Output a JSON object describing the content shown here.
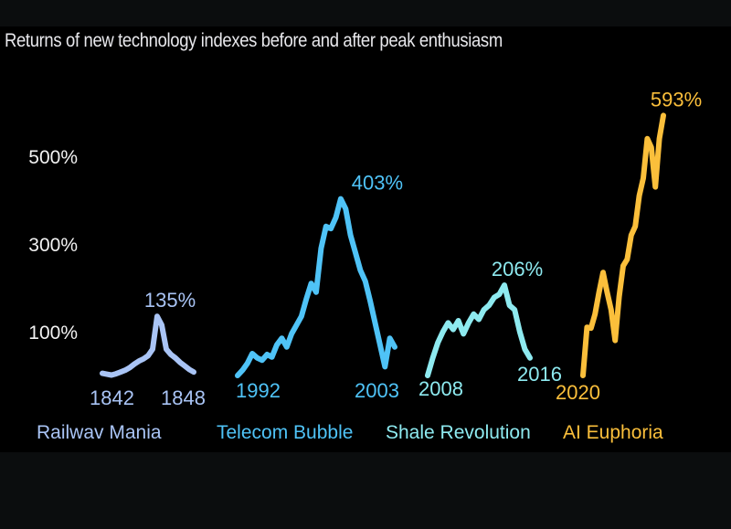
{
  "chart_data": {
    "type": "line",
    "title": "Returns of new technology indexes before and after peak enthusiasm",
    "xlabel": "",
    "ylabel": "",
    "ylim": [
      0,
      600
    ],
    "yticks": [
      100,
      300,
      500
    ],
    "ytick_labels": [
      "100%",
      "300%",
      "500%"
    ],
    "grid": false,
    "legend": "bottom",
    "series": [
      {
        "name": "Railwav Mania",
        "color": "#a9c4f5",
        "start_label": "1842",
        "end_label": "1848",
        "peak_label": "135%",
        "peak": 135,
        "values": [
          5,
          3,
          1,
          4,
          8,
          12,
          18,
          26,
          33,
          38,
          45,
          60,
          135,
          115,
          60,
          48,
          40,
          30,
          22,
          14,
          8
        ]
      },
      {
        "name": "Telecom Bubble",
        "color": "#4fc3f7",
        "start_label": "1992",
        "end_label": "2003",
        "peak_label": "403%",
        "peak": 403,
        "values": [
          0,
          12,
          28,
          50,
          40,
          35,
          48,
          42,
          70,
          85,
          65,
          95,
          115,
          135,
          175,
          210,
          190,
          290,
          340,
          335,
          360,
          403,
          380,
          320,
          280,
          240,
          215,
          170,
          120,
          70,
          20,
          85,
          65
        ]
      },
      {
        "name": "Shale Revolution",
        "color": "#8eeaf0",
        "start_label": "2008",
        "end_label": "2016",
        "peak_label": "206%",
        "peak": 206,
        "values": [
          0,
          40,
          75,
          100,
          120,
          105,
          125,
          95,
          120,
          140,
          128,
          150,
          160,
          178,
          185,
          206,
          160,
          150,
          100,
          60,
          40
        ]
      },
      {
        "name": "AI Euphoria",
        "color": "#fbbf3b",
        "start_label": "2020",
        "end_label": "",
        "peak_label": "593%",
        "peak": 593,
        "values": [
          0,
          110,
          108,
          140,
          190,
          235,
          190,
          150,
          80,
          180,
          250,
          265,
          320,
          340,
          410,
          450,
          540,
          520,
          430,
          540,
          593
        ]
      }
    ]
  }
}
